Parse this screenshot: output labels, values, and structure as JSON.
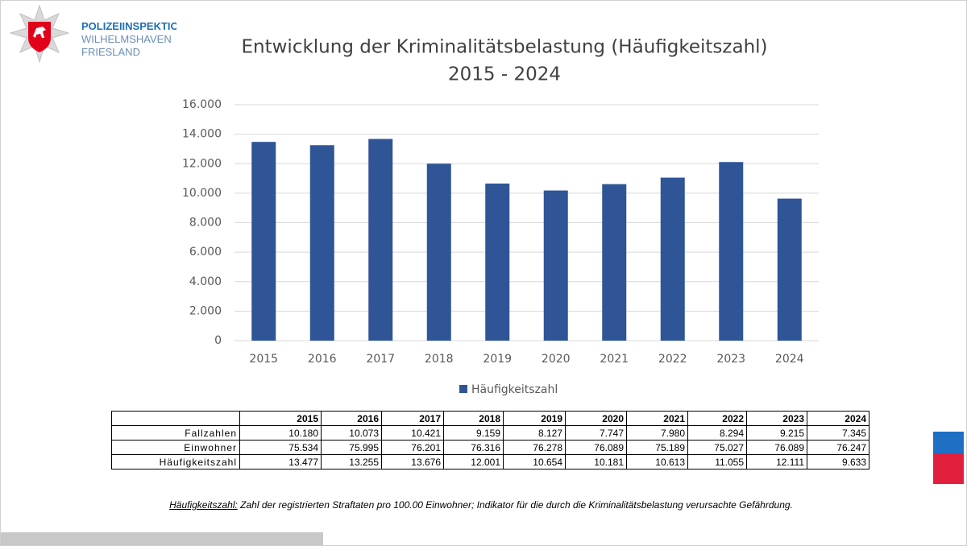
{
  "header": {
    "lines": [
      "POLIZEIINSPEKTION",
      "WILHELMSHAVEN",
      "FRIESLAND"
    ]
  },
  "chart_data": {
    "type": "bar",
    "title": "Entwicklung der Kriminalitätsbelastung (Häufigkeitszahl)",
    "subtitle": "2015 - 2024",
    "categories": [
      "2015",
      "2016",
      "2017",
      "2018",
      "2019",
      "2020",
      "2021",
      "2022",
      "2023",
      "2024"
    ],
    "series": [
      {
        "name": "Häufigkeitszahl",
        "color": "#2f5597",
        "values": [
          13477,
          13255,
          13676,
          12001,
          10654,
          10181,
          10613,
          11055,
          12111,
          9633
        ]
      }
    ],
    "ylim": [
      0,
      16000
    ],
    "yticks": [
      0,
      {
        "value": 2000,
        "label": "2.000"
      },
      {
        "value": 4000,
        "label": "4.000"
      },
      {
        "value": 6000,
        "label": "6.000"
      },
      {
        "value": 8000,
        "label": "8.000"
      },
      {
        "value": 10000,
        "label": "10.000"
      },
      {
        "value": 12000,
        "label": "12.000"
      },
      {
        "value": 14000,
        "label": "14.000"
      },
      {
        "value": 16000,
        "label": "16.000"
      }
    ],
    "grid": true,
    "legend": "bottom"
  },
  "table": {
    "columns": [
      "2015",
      "2016",
      "2017",
      "2018",
      "2019",
      "2020",
      "2021",
      "2022",
      "2023",
      "2024"
    ],
    "rows": [
      {
        "label": "Fallzahlen",
        "cells": [
          "10.180",
          "10.073",
          "10.421",
          "9.159",
          "8.127",
          "7.747",
          "7.980",
          "8.294",
          "9.215",
          "7.345"
        ]
      },
      {
        "label": "Einwohner",
        "cells": [
          "75.534",
          "75.995",
          "76.201",
          "76.316",
          "76.278",
          "76.089",
          "75.189",
          "75.027",
          "76.089",
          "76.247"
        ]
      },
      {
        "label": "Häufigkeitszahl",
        "cells": [
          "13.477",
          "13.255",
          "13.676",
          "12.001",
          "10.654",
          "10.181",
          "10.613",
          "11.055",
          "12.111",
          "9.633"
        ]
      }
    ]
  },
  "footnote": {
    "term": "Häufigkeitszahl:",
    "text": " Zahl der registrierten Straftaten pro 100.00 Einwohner; Indikator für die durch die Kriminalitätsbelastung verursachte Gefährdung."
  }
}
